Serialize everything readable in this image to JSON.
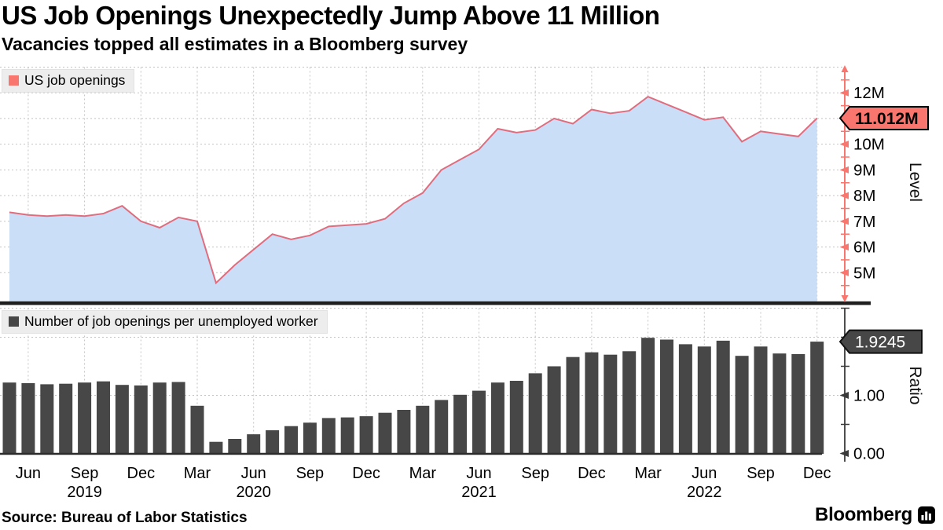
{
  "header": {
    "title": "US Job Openings Unexpectedly Jump Above 11 Million",
    "subtitle": "Vacancies topped all estimates in a Bloomberg survey"
  },
  "source": {
    "label": "Source: Bureau of Labor Statistics"
  },
  "branding": {
    "logo_text": "Bloomberg",
    "logo_icon": "bloomberg-terminal-icon"
  },
  "colors": {
    "line": "#e06d7e",
    "area_fill": "#cadef7",
    "salmon": "#f8766d",
    "bar": "#474747",
    "grid": "#c3c3c3",
    "axis_red": "#f8766d",
    "axis_dark": "#3a3a3a",
    "badge_top_bg": "#f8766d",
    "badge_top_text": "#000000",
    "badge_bottom_bg": "#474747",
    "badge_bottom_text": "#ffffff",
    "divider": "#1f1f1f",
    "baseline": "#2b2b2b",
    "legend_bg": "#ededed"
  },
  "chart_data": [
    {
      "type": "area",
      "name": "US job openings",
      "unit": "millions",
      "ylabel": "Level",
      "ylim": [
        3.9,
        13
      ],
      "grid": true,
      "legend_position": "top-left",
      "last_value": 11.012,
      "last_value_label": "11.012M",
      "yticks": [
        {
          "v": 12,
          "label": "12M"
        },
        {
          "v": 10,
          "label": "10M"
        },
        {
          "v": 9,
          "label": "9M"
        },
        {
          "v": 8,
          "label": "8M"
        },
        {
          "v": 7,
          "label": "7M"
        },
        {
          "v": 6,
          "label": "6M"
        },
        {
          "v": 5,
          "label": "5M"
        }
      ],
      "xticks": [
        {
          "m": "Jun"
        },
        {
          "m": "Sep",
          "year": "2019"
        },
        {
          "m": "Dec"
        },
        {
          "m": "Mar"
        },
        {
          "m": "Jun",
          "year": "2020"
        },
        {
          "m": "Sep"
        },
        {
          "m": "Dec"
        },
        {
          "m": "Mar"
        },
        {
          "m": "Jun",
          "year": "2021"
        },
        {
          "m": "Sep"
        },
        {
          "m": "Dec"
        },
        {
          "m": "Mar"
        },
        {
          "m": "Jun",
          "year": "2022"
        },
        {
          "m": "Sep"
        },
        {
          "m": "Dec"
        }
      ],
      "months": [
        "May 2019",
        "Jun 2019",
        "Jul 2019",
        "Aug 2019",
        "Sep 2019",
        "Oct 2019",
        "Nov 2019",
        "Dec 2019",
        "Jan 2020",
        "Feb 2020",
        "Mar 2020",
        "Apr 2020",
        "May 2020",
        "Jun 2020",
        "Jul 2020",
        "Aug 2020",
        "Sep 2020",
        "Oct 2020",
        "Nov 2020",
        "Dec 2020",
        "Jan 2021",
        "Feb 2021",
        "Mar 2021",
        "Apr 2021",
        "May 2021",
        "Jun 2021",
        "Jul 2021",
        "Aug 2021",
        "Sep 2021",
        "Oct 2021",
        "Nov 2021",
        "Dec 2021",
        "Jan 2022",
        "Feb 2022",
        "Mar 2022",
        "Apr 2022",
        "May 2022",
        "Jun 2022",
        "Jul 2022",
        "Aug 2022",
        "Sep 2022",
        "Oct 2022",
        "Nov 2022",
        "Dec 2022"
      ],
      "values": [
        7.35,
        7.25,
        7.2,
        7.25,
        7.2,
        7.3,
        7.6,
        7.0,
        6.75,
        7.15,
        7.0,
        4.6,
        5.3,
        5.9,
        6.5,
        6.3,
        6.45,
        6.8,
        6.85,
        6.9,
        7.1,
        7.7,
        8.1,
        9.0,
        9.4,
        9.8,
        10.6,
        10.45,
        10.55,
        11.0,
        10.8,
        11.35,
        11.2,
        11.3,
        11.85,
        11.55,
        11.25,
        10.95,
        11.05,
        10.1,
        10.5,
        10.4,
        10.3,
        11.012
      ]
    },
    {
      "type": "bar",
      "name": "Number of job openings per unemployed worker",
      "unit": "ratio",
      "ylabel": "Ratio",
      "ylim": [
        0,
        2.5
      ],
      "grid": true,
      "legend_position": "top-left",
      "last_value": 1.9245,
      "last_value_label": "1.9245",
      "yticks": [
        {
          "v": 1,
          "label": "1.00"
        },
        {
          "v": 0,
          "label": "0.00"
        }
      ],
      "months": [
        "May 2019",
        "Jun 2019",
        "Jul 2019",
        "Aug 2019",
        "Sep 2019",
        "Oct 2019",
        "Nov 2019",
        "Dec 2019",
        "Jan 2020",
        "Feb 2020",
        "Mar 2020",
        "Apr 2020",
        "May 2020",
        "Jun 2020",
        "Jul 2020",
        "Aug 2020",
        "Sep 2020",
        "Oct 2020",
        "Nov 2020",
        "Dec 2020",
        "Jan 2021",
        "Feb 2021",
        "Mar 2021",
        "Apr 2021",
        "May 2021",
        "Jun 2021",
        "Jul 2021",
        "Aug 2021",
        "Sep 2021",
        "Oct 2021",
        "Nov 2021",
        "Dec 2021",
        "Jan 2022",
        "Feb 2022",
        "Mar 2022",
        "Apr 2022",
        "May 2022",
        "Jun 2022",
        "Jul 2022",
        "Aug 2022",
        "Sep 2022",
        "Oct 2022",
        "Nov 2022",
        "Dec 2022"
      ],
      "values": [
        1.22,
        1.21,
        1.19,
        1.2,
        1.22,
        1.24,
        1.18,
        1.17,
        1.22,
        1.23,
        0.82,
        0.2,
        0.25,
        0.33,
        0.4,
        0.47,
        0.53,
        0.61,
        0.62,
        0.64,
        0.7,
        0.75,
        0.82,
        0.92,
        1.01,
        1.08,
        1.22,
        1.25,
        1.38,
        1.5,
        1.66,
        1.74,
        1.7,
        1.76,
        1.99,
        1.96,
        1.88,
        1.84,
        1.94,
        1.68,
        1.84,
        1.72,
        1.71,
        1.9245
      ]
    }
  ]
}
